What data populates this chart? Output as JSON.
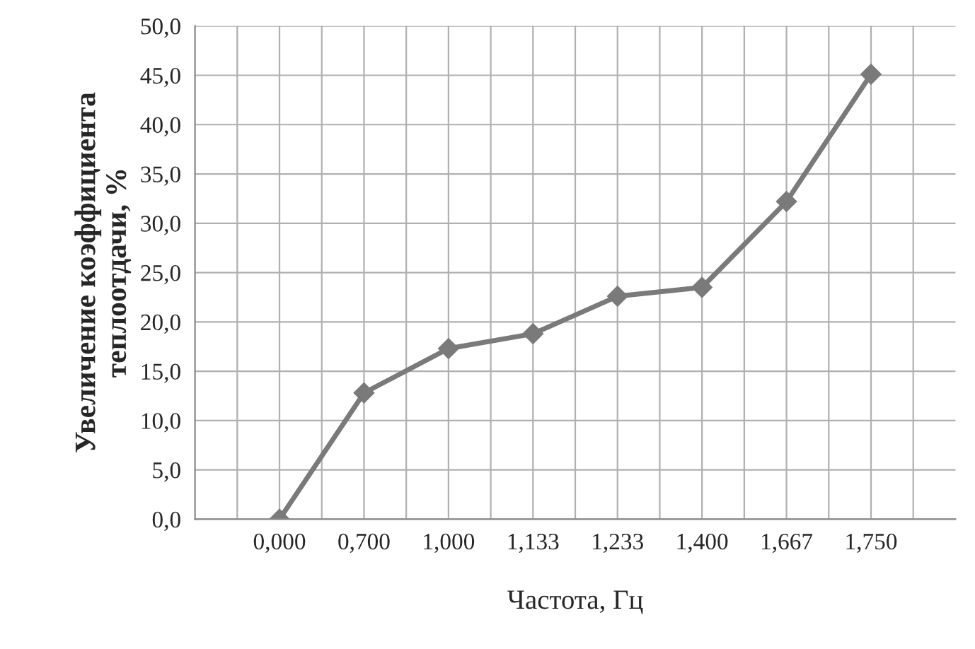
{
  "chart_data": {
    "type": "line",
    "xlabel": "Частота, Гц",
    "ylabel": "Увеличение коэффициента\nтеплоотдачи, %",
    "categories": [
      "0,000",
      "0,700",
      "1,000",
      "1,133",
      "1,233",
      "1,400",
      "1,667",
      "1,750"
    ],
    "series": [
      {
        "color": "#7a7a7a",
        "values": [
          0,
          12.8,
          17.3,
          18.8,
          22.6,
          23.5,
          32.2,
          45.1
        ]
      }
    ],
    "ylim": [
      0,
      50
    ],
    "yticks": [
      {
        "value": 0,
        "label": "0,0"
      },
      {
        "value": 5,
        "label": "5,0"
      },
      {
        "value": 10,
        "label": "10,0"
      },
      {
        "value": 15,
        "label": "15,0"
      },
      {
        "value": 20,
        "label": "20,0"
      },
      {
        "value": 25,
        "label": "25,0"
      },
      {
        "value": 30,
        "label": "30,0"
      },
      {
        "value": 35,
        "label": "35,0"
      },
      {
        "value": 40,
        "label": "40,0"
      },
      {
        "value": 45,
        "label": "45,0"
      },
      {
        "value": 50,
        "label": "50,0"
      }
    ],
    "grid": true,
    "marker": "diamond",
    "line_style": "solid",
    "legend": false
  }
}
